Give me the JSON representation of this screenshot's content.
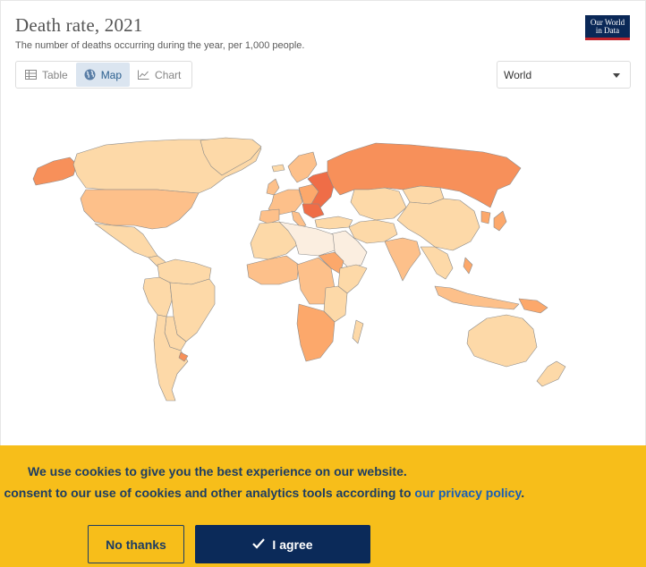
{
  "header": {
    "title": "Death rate, 2021",
    "subtitle": "The number of deaths occurring during the year, per 1,000 people.",
    "logo_line1": "Our World",
    "logo_line2": "in Data"
  },
  "tabs": [
    {
      "label": "Table",
      "icon": "table-icon",
      "active": false
    },
    {
      "label": "Map",
      "icon": "globe-icon",
      "active": true
    },
    {
      "label": "Chart",
      "icon": "line-chart-icon",
      "active": false
    }
  ],
  "region_select": {
    "value": "World"
  },
  "map": {
    "colors": {
      "low": "#fbeee0",
      "mid_low": "#fdd9a8",
      "mid": "#fdc08a",
      "mid_high": "#fca86b",
      "high": "#f7905a",
      "highest": "#ef6d47",
      "border": "#8a8a8a",
      "ocean": "#ffffff"
    }
  },
  "cookie_banner": {
    "line1": "We use cookies to give you the best experience on our website.",
    "line2_prefix": "u consent to our use of cookies and other analytics tools according to ",
    "line2_link": "our privacy policy",
    "line2_suffix": ".",
    "decline_label": "No thanks",
    "accept_label": "I agree",
    "background": "#f7be1a",
    "text_color": "#1d3d63"
  }
}
